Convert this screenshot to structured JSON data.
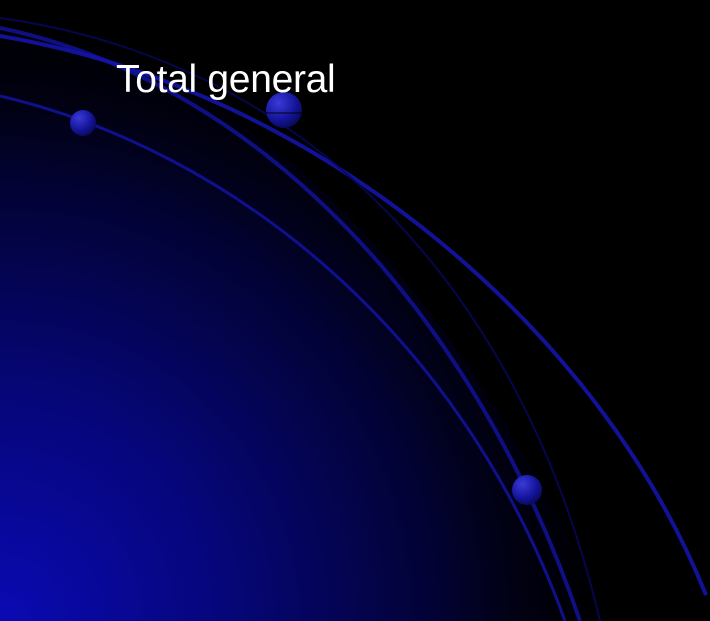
{
  "slide": {
    "title": "Total general"
  },
  "theme": {
    "background": "#000000",
    "accent": "#0a0aa8",
    "title_color": "#ffffff"
  }
}
